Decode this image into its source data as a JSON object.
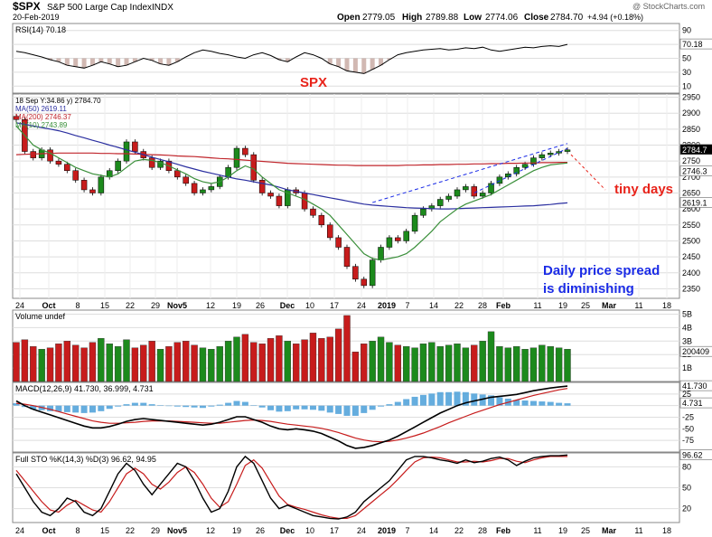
{
  "header": {
    "symbol": "$SPX",
    "name": "S&P 500 Large Cap Index",
    "exchange": "INDX",
    "date": "20-Feb-2019",
    "copyright": "@ StockCharts.com",
    "open_label": "Open",
    "open": "2779.05",
    "high_label": "High",
    "high": "2789.88",
    "low_label": "Low",
    "low": "2774.06",
    "close_label": "Close",
    "close": "2784.70",
    "change": "+4.94 (+0.18%)"
  },
  "colors": {
    "up": "#1c8a1c",
    "down": "#c71c1c",
    "ma50": "#2b2fa0",
    "ma200": "#c0252b",
    "ma10": "#3a8f3a",
    "annotation_red": "#e8231a",
    "annotation_blue": "#1a2be6",
    "macd_hist": "#4a9fd8",
    "grid": "#dedede",
    "panel_border": "#888888"
  },
  "annotations": {
    "spx": "SPX",
    "tiny_days": "tiny days",
    "spread_line1": "Daily price spread",
    "spread_line2": "is diminishing"
  },
  "chart_data": [
    {
      "type": "line",
      "panel": "rsi",
      "title": "RSI(14) 70.18",
      "y_ticks": [
        90,
        70,
        50,
        30,
        10
      ],
      "ylim": [
        0,
        100
      ],
      "last_value_label": "70.18",
      "series": [
        {
          "name": "RSI(14)",
          "values": [
            60,
            58,
            55,
            52,
            48,
            45,
            40,
            38,
            36,
            40,
            45,
            42,
            38,
            40,
            45,
            50,
            47,
            42,
            40,
            45,
            52,
            58,
            62,
            60,
            57,
            55,
            52,
            50,
            55,
            58,
            54,
            48,
            45,
            52,
            58,
            55,
            50,
            42,
            38,
            32,
            30,
            28,
            34,
            40,
            48,
            55,
            58,
            60,
            62,
            63,
            64,
            62,
            63,
            65,
            64,
            66,
            62,
            60,
            62,
            64,
            66,
            65,
            67,
            68,
            67,
            70
          ]
        }
      ]
    },
    {
      "type": "candlestick",
      "panel": "price",
      "title": "SPX",
      "legend": [
        "18 Sep Y:34.86 y) 2784.70",
        "MA(50) 2619.11",
        "MA(200) 2746.37",
        "MA(10) 2743.89"
      ],
      "y_ticks": [
        2950,
        2900,
        2850,
        2800,
        2750,
        2700,
        2650,
        2600,
        2550,
        2500,
        2450,
        2400,
        2350
      ],
      "ylim": [
        2320,
        2960
      ],
      "last_value_labels": [
        "2784.7",
        "2746.3",
        "2619.1"
      ],
      "x_tick_labels": [
        "24",
        "Oct",
        "8",
        "15",
        "22",
        "29",
        "Nov5",
        "12",
        "19",
        "26",
        "Dec",
        "10",
        "17",
        "24",
        "2019",
        "7",
        "14",
        "22",
        "28",
        "Feb",
        "11",
        "19",
        "25",
        "Mar",
        "11",
        "18"
      ],
      "close": [
        2880,
        2780,
        2760,
        2785,
        2750,
        2740,
        2720,
        2690,
        2660,
        2650,
        2700,
        2720,
        2750,
        2810,
        2780,
        2760,
        2730,
        2750,
        2720,
        2700,
        2680,
        2650,
        2660,
        2670,
        2700,
        2730,
        2790,
        2770,
        2690,
        2650,
        2640,
        2610,
        2660,
        2650,
        2600,
        2580,
        2550,
        2510,
        2480,
        2420,
        2380,
        2360,
        2440,
        2480,
        2510,
        2500,
        2530,
        2580,
        2600,
        2610,
        2630,
        2640,
        2660,
        2670,
        2640,
        2650,
        2680,
        2700,
        2710,
        2730,
        2740,
        2760,
        2770,
        2775,
        2780,
        2785
      ],
      "ma50": [
        2870,
        2865,
        2860,
        2855,
        2850,
        2845,
        2838,
        2830,
        2823,
        2815,
        2808,
        2800,
        2793,
        2785,
        2778,
        2770,
        2762,
        2755,
        2748,
        2740,
        2732,
        2725,
        2718,
        2712,
        2706,
        2700,
        2694,
        2690,
        2685,
        2680,
        2675,
        2668,
        2660,
        2655,
        2650,
        2645,
        2640,
        2635,
        2630,
        2625,
        2620,
        2615,
        2612,
        2610,
        2608,
        2606,
        2604,
        2603,
        2602,
        2601,
        2600,
        2600,
        2601,
        2602,
        2603,
        2604,
        2605,
        2606,
        2607,
        2608,
        2609,
        2610,
        2612,
        2614,
        2617,
        2619
      ],
      "ma200": [
        2770,
        2771,
        2772,
        2773,
        2774,
        2775,
        2775,
        2775,
        2775,
        2775,
        2774,
        2774,
        2773,
        2773,
        2772,
        2771,
        2770,
        2769,
        2768,
        2766,
        2765,
        2764,
        2762,
        2760,
        2758,
        2757,
        2755,
        2753,
        2751,
        2749,
        2747,
        2745,
        2743,
        2742,
        2741,
        2740,
        2739,
        2738,
        2737,
        2737,
        2736,
        2736,
        2736,
        2736,
        2736,
        2736,
        2737,
        2737,
        2738,
        2738,
        2739,
        2739,
        2740,
        2740,
        2741,
        2741,
        2742,
        2742,
        2743,
        2743,
        2744,
        2744,
        2745,
        2745,
        2746,
        2746
      ],
      "ma10": [
        2860,
        2830,
        2800,
        2785,
        2775,
        2760,
        2745,
        2730,
        2720,
        2710,
        2705,
        2700,
        2710,
        2730,
        2750,
        2755,
        2752,
        2745,
        2735,
        2722,
        2710,
        2695,
        2685,
        2680,
        2685,
        2700,
        2720,
        2735,
        2725,
        2700,
        2680,
        2660,
        2650,
        2640,
        2630,
        2615,
        2600,
        2580,
        2550,
        2520,
        2490,
        2460,
        2445,
        2440,
        2445,
        2450,
        2460,
        2480,
        2505,
        2530,
        2560,
        2580,
        2600,
        2615,
        2625,
        2635,
        2645,
        2660,
        2675,
        2690,
        2705,
        2720,
        2730,
        2738,
        2741,
        2744
      ]
    },
    {
      "type": "bar",
      "panel": "volume",
      "title": "Volume undef",
      "y_ticks": [
        "5B",
        "4B",
        "3B",
        "2B",
        "1B"
      ],
      "last_value_label": "200409",
      "values": [
        2.9,
        3.1,
        2.6,
        2.4,
        2.5,
        2.8,
        3.0,
        2.7,
        2.5,
        2.9,
        3.2,
        2.8,
        2.6,
        3.1,
        2.5,
        2.7,
        3.0,
        2.4,
        2.6,
        2.9,
        3.0,
        2.7,
        2.5,
        2.4,
        2.6,
        3.0,
        3.3,
        3.5,
        2.9,
        2.8,
        3.2,
        3.4,
        3.0,
        2.8,
        3.1,
        3.6,
        3.2,
        3.3,
        3.9,
        4.9,
        2.2,
        2.8,
        3.0,
        3.3,
        2.9,
        2.7,
        2.6,
        2.5,
        2.8,
        2.9,
        2.6,
        2.7,
        2.8,
        2.5,
        2.7,
        3.0,
        3.7,
        2.6,
        2.5,
        2.6,
        2.4,
        2.5,
        2.7,
        2.6,
        2.5,
        2.4
      ]
    },
    {
      "type": "line",
      "panel": "macd",
      "title": "MACD(12,26,9) 41.730, 36.999, 4.731",
      "y_ticks": [
        25,
        0,
        -25,
        -50,
        -75
      ],
      "ylim": [
        -100,
        50
      ],
      "last_value_labels": [
        "41.730",
        "36.99",
        "4.731"
      ],
      "series": [
        {
          "name": "MACD",
          "values": [
            10,
            0,
            -8,
            -14,
            -20,
            -26,
            -32,
            -38,
            -44,
            -48,
            -48,
            -45,
            -40,
            -34,
            -30,
            -28,
            -30,
            -32,
            -34,
            -36,
            -38,
            -40,
            -42,
            -40,
            -36,
            -30,
            -24,
            -24,
            -30,
            -36,
            -44,
            -50,
            -52,
            -50,
            -52,
            -55,
            -60,
            -68,
            -76,
            -86,
            -92,
            -90,
            -86,
            -80,
            -74,
            -66,
            -56,
            -46,
            -36,
            -26,
            -16,
            -8,
            0,
            6,
            10,
            14,
            18,
            20,
            22,
            24,
            28,
            32,
            35,
            38,
            40,
            42
          ]
        },
        {
          "name": "Signal",
          "values": [
            5,
            3,
            0,
            -4,
            -8,
            -13,
            -18,
            -23,
            -28,
            -33,
            -36,
            -38,
            -38,
            -37,
            -36,
            -34,
            -33,
            -33,
            -33,
            -34,
            -35,
            -36,
            -37,
            -38,
            -38,
            -36,
            -34,
            -32,
            -31,
            -32,
            -34,
            -37,
            -40,
            -42,
            -44,
            -46,
            -49,
            -53,
            -58,
            -64,
            -70,
            -74,
            -77,
            -78,
            -77,
            -74,
            -70,
            -65,
            -59,
            -52,
            -45,
            -37,
            -30,
            -23,
            -16,
            -10,
            -4,
            2,
            7,
            12,
            17,
            22,
            26,
            30,
            34,
            37
          ]
        },
        {
          "name": "Histogram",
          "values": [
            5,
            -3,
            -8,
            -10,
            -12,
            -13,
            -14,
            -15,
            -16,
            -15,
            -12,
            -7,
            -2,
            3,
            6,
            6,
            3,
            1,
            -1,
            -2,
            -3,
            -4,
            -5,
            -2,
            2,
            6,
            10,
            8,
            1,
            -4,
            -10,
            -13,
            -12,
            -8,
            -8,
            -9,
            -11,
            -15,
            -18,
            -22,
            -22,
            -16,
            -9,
            -2,
            3,
            8,
            14,
            19,
            23,
            26,
            29,
            29,
            30,
            29,
            26,
            24,
            22,
            18,
            15,
            12,
            11,
            10,
            9,
            8,
            6,
            5
          ]
        }
      ]
    },
    {
      "type": "line",
      "panel": "stochastic",
      "title": "Full STO %K(14,3) %D(3) 96.62, 94.95",
      "y_ticks": [
        80,
        50,
        20
      ],
      "ylim": [
        0,
        100
      ],
      "last_value_labels": [
        "96.62",
        "94.95"
      ],
      "series": [
        {
          "name": "%K",
          "values": [
            70,
            50,
            30,
            15,
            10,
            20,
            35,
            30,
            15,
            10,
            20,
            45,
            70,
            85,
            75,
            55,
            40,
            55,
            70,
            85,
            80,
            60,
            35,
            15,
            20,
            45,
            80,
            95,
            85,
            60,
            35,
            20,
            25,
            20,
            15,
            10,
            8,
            6,
            5,
            8,
            15,
            30,
            40,
            50,
            60,
            75,
            90,
            95,
            95,
            93,
            90,
            88,
            85,
            90,
            86,
            88,
            92,
            94,
            90,
            82,
            88,
            93,
            95,
            96,
            96,
            97
          ]
        },
        {
          "name": "%D",
          "values": [
            75,
            60,
            45,
            30,
            18,
            15,
            25,
            32,
            25,
            18,
            15,
            30,
            50,
            70,
            78,
            70,
            55,
            48,
            58,
            72,
            80,
            72,
            55,
            35,
            22,
            30,
            55,
            82,
            90,
            78,
            58,
            38,
            26,
            22,
            19,
            15,
            11,
            8,
            6,
            6,
            10,
            20,
            30,
            40,
            50,
            62,
            75,
            87,
            93,
            94,
            93,
            90,
            87,
            87,
            88,
            87,
            89,
            92,
            92,
            88,
            86,
            90,
            93,
            95,
            95,
            95
          ]
        }
      ]
    }
  ]
}
